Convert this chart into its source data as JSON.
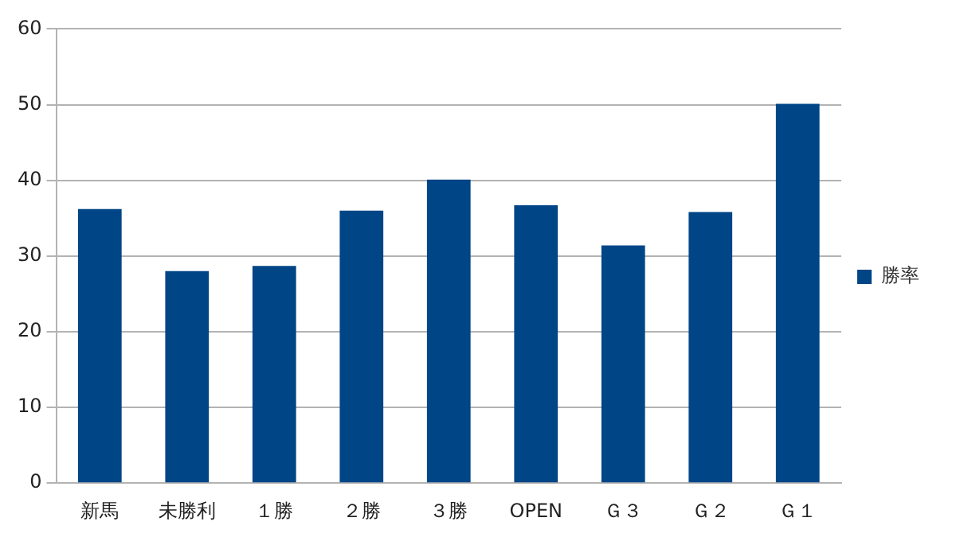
{
  "chart_data": {
    "type": "bar",
    "categories": [
      "新馬",
      "未勝利",
      "１勝",
      "２勝",
      "３勝",
      "OPEN",
      "Ｇ３",
      "Ｇ２",
      "Ｇ１"
    ],
    "series": [
      {
        "name": "勝率",
        "color": "#004586",
        "values": [
          36.2,
          28.0,
          28.7,
          36.0,
          40.1,
          36.7,
          31.4,
          35.8,
          50.1
        ]
      }
    ],
    "ylim": [
      0,
      60
    ],
    "yticks": [
      0,
      10,
      20,
      30,
      40,
      50,
      60
    ],
    "grid": "y",
    "legend": "right"
  }
}
